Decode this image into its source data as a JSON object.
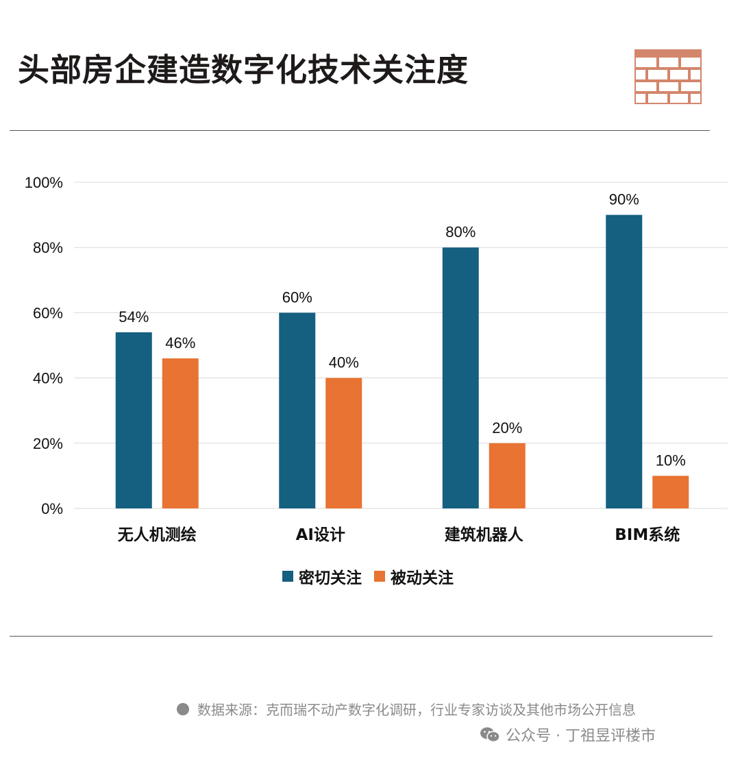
{
  "title": "头部房企建造数字化技术关注度",
  "colors": {
    "series1": "#155f80",
    "series2": "#e87332",
    "logo": "#d3866b",
    "grid": "#d9d9d9"
  },
  "legend": [
    {
      "label": "密切关注",
      "color": "#155f80"
    },
    {
      "label": "被动关注",
      "color": "#e87332"
    }
  ],
  "footer": {
    "source": "数据来源：克而瑞不动产数字化调研，行业专家访谈及其他市场公开信息",
    "account": "公众号 · 丁祖昱评楼市"
  },
  "chart_data": {
    "type": "bar",
    "categories": [
      "无人机测绘",
      "AI设计",
      "建筑机器人",
      "BIM系统"
    ],
    "series": [
      {
        "name": "密切关注",
        "values": [
          54,
          60,
          80,
          90
        ]
      },
      {
        "name": "被动关注",
        "values": [
          46,
          40,
          20,
          10
        ]
      }
    ],
    "ylim": [
      0,
      100
    ],
    "yticks": [
      "0%",
      "20%",
      "40%",
      "60%",
      "80%",
      "100%"
    ],
    "ytick_values": [
      0,
      20,
      40,
      60,
      80,
      100
    ],
    "data_labels": [
      [
        "54%",
        "60%",
        "80%",
        "90%"
      ],
      [
        "46%",
        "40%",
        "20%",
        "10%"
      ]
    ],
    "grid": true,
    "legend_position": "bottom"
  }
}
